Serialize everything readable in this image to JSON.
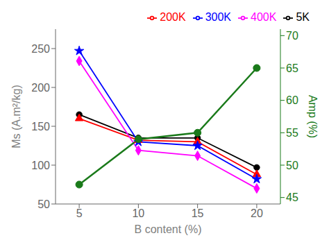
{
  "chart_data": {
    "type": "line",
    "x": [
      5,
      10,
      15,
      20
    ],
    "xlabel": "B content (%)",
    "ylabel": "Ms (A.m²/kg)",
    "y2label": "Amp (%)",
    "xlim": [
      3,
      22
    ],
    "xticks": [
      5,
      10,
      15,
      20
    ],
    "ylim": [
      50,
      275
    ],
    "yticks": [
      50,
      100,
      150,
      200,
      250
    ],
    "y2lim": [
      44,
      71
    ],
    "y2ticks": [
      45,
      50,
      55,
      60,
      65,
      70
    ],
    "grid": false,
    "legend": "upper right",
    "series": [
      {
        "name": "5K",
        "color": "#000000",
        "marker": "circle",
        "values": [
          165,
          135,
          135,
          97
        ]
      },
      {
        "name": "200K",
        "color": "#ff0000",
        "marker": "triangle",
        "values": [
          160,
          132,
          130,
          88
        ]
      },
      {
        "name": "300K",
        "color": "#0000ff",
        "marker": "star",
        "values": [
          247,
          130,
          125,
          82
        ]
      },
      {
        "name": "400K",
        "color": "#ff00ff",
        "marker": "diamond",
        "values": [
          234,
          119,
          112,
          70
        ]
      },
      {
        "color": "#1a7a1a",
        "marker": "circle",
        "axis": "y2",
        "values": [
          47,
          54,
          55,
          65
        ]
      }
    ]
  }
}
